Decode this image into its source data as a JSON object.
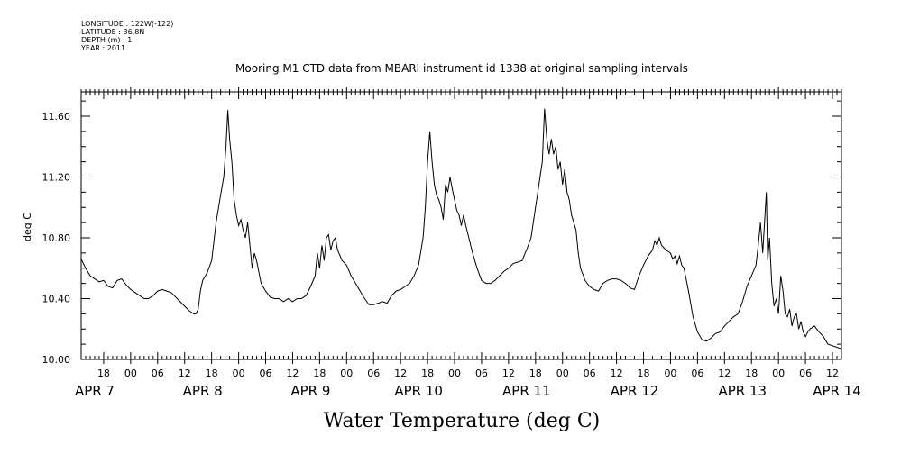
{
  "header": {
    "longitude": "LONGITUDE : 122W(-122)",
    "latitude": "LATITUDE : 36.8N",
    "depth": "DEPTH (m) : 1",
    "year": "YEAR : 2011"
  },
  "chart_data": {
    "type": "line",
    "title": "Mooring M1 CTD data from MBARI instrument id 1338 at original sampling intervals",
    "xlabel": "Water Temperature (deg C)",
    "ylabel": "deg C",
    "ylim": [
      10.0,
      11.76
    ],
    "xlim": [
      -26,
      6
    ],
    "y_ticks": [
      "10.00",
      "10.40",
      "10.80",
      "11.20",
      "11.60"
    ],
    "x_hour_ticks": [
      {
        "label": "18",
        "h": 18
      },
      {
        "label": "00",
        "h": 24
      },
      {
        "label": "06",
        "h": 30
      },
      {
        "label": "12",
        "h": 36
      },
      {
        "label": "18",
        "h": 42
      },
      {
        "label": "00",
        "h": 48
      },
      {
        "label": "06",
        "h": 54
      },
      {
        "label": "12",
        "h": 60
      },
      {
        "label": "18",
        "h": 66
      },
      {
        "label": "00",
        "h": 72
      },
      {
        "label": "06",
        "h": 78
      },
      {
        "label": "12",
        "h": 84
      },
      {
        "label": "18",
        "h": 90
      },
      {
        "label": "00",
        "h": 96
      },
      {
        "label": "06",
        "h": 102
      },
      {
        "label": "12",
        "h": 108
      },
      {
        "label": "18",
        "h": 114
      },
      {
        "label": "00",
        "h": 120
      },
      {
        "label": "06",
        "h": 126
      },
      {
        "label": "12",
        "h": 132
      },
      {
        "label": "18",
        "h": 138
      },
      {
        "label": "00",
        "h": 144
      },
      {
        "label": "06",
        "h": 150
      },
      {
        "label": "12",
        "h": 156
      },
      {
        "label": "18",
        "h": 162
      },
      {
        "label": "00",
        "h": 168
      },
      {
        "label": "06",
        "h": 174
      },
      {
        "label": "12",
        "h": 180
      }
    ],
    "x_date_labels": [
      {
        "label": "APR  7",
        "h": 16
      },
      {
        "label": "APR  8",
        "h": 40
      },
      {
        "label": "APR  9",
        "h": 64
      },
      {
        "label": "APR 10",
        "h": 88
      },
      {
        "label": "APR 11",
        "h": 112
      },
      {
        "label": "APR 12",
        "h": 136
      },
      {
        "label": "APR 13",
        "h": 160
      },
      {
        "label": "APR 14",
        "h": 181
      }
    ],
    "x_range_hours": [
      13.0,
      182.0
    ],
    "series": [
      {
        "color": "#000000",
        "points": [
          [
            13.0,
            10.66
          ],
          [
            14.0,
            10.6
          ],
          [
            15.0,
            10.55
          ],
          [
            16.0,
            10.53
          ],
          [
            17.0,
            10.51
          ],
          [
            18.0,
            10.52
          ],
          [
            19.0,
            10.48
          ],
          [
            20.0,
            10.47
          ],
          [
            21.0,
            10.52
          ],
          [
            22.0,
            10.53
          ],
          [
            23.0,
            10.49
          ],
          [
            24.0,
            10.46
          ],
          [
            25.0,
            10.44
          ],
          [
            26.0,
            10.42
          ],
          [
            27.0,
            10.4
          ],
          [
            28.0,
            10.4
          ],
          [
            29.0,
            10.42
          ],
          [
            30.0,
            10.45
          ],
          [
            31.0,
            10.46
          ],
          [
            32.0,
            10.45
          ],
          [
            33.0,
            10.44
          ],
          [
            34.0,
            10.41
          ],
          [
            35.0,
            10.38
          ],
          [
            36.0,
            10.35
          ],
          [
            37.0,
            10.32
          ],
          [
            38.0,
            10.3
          ],
          [
            38.5,
            10.3
          ],
          [
            39.0,
            10.33
          ],
          [
            39.5,
            10.45
          ],
          [
            40.0,
            10.52
          ],
          [
            41.0,
            10.57
          ],
          [
            42.0,
            10.65
          ],
          [
            43.0,
            10.9
          ],
          [
            44.0,
            11.08
          ],
          [
            44.7,
            11.2
          ],
          [
            45.2,
            11.4
          ],
          [
            45.6,
            11.64
          ],
          [
            46.0,
            11.45
          ],
          [
            46.5,
            11.3
          ],
          [
            47.0,
            11.05
          ],
          [
            47.5,
            10.95
          ],
          [
            48.0,
            10.88
          ],
          [
            48.5,
            10.92
          ],
          [
            49.0,
            10.85
          ],
          [
            49.5,
            10.8
          ],
          [
            50.0,
            10.9
          ],
          [
            50.5,
            10.75
          ],
          [
            51.0,
            10.6
          ],
          [
            51.5,
            10.7
          ],
          [
            52.0,
            10.65
          ],
          [
            53.0,
            10.5
          ],
          [
            54.0,
            10.45
          ],
          [
            55.0,
            10.41
          ],
          [
            56.0,
            10.4
          ],
          [
            57.0,
            10.4
          ],
          [
            58.0,
            10.38
          ],
          [
            59.0,
            10.4
          ],
          [
            60.0,
            10.38
          ],
          [
            61.0,
            10.4
          ],
          [
            62.0,
            10.4
          ],
          [
            63.0,
            10.42
          ],
          [
            64.0,
            10.48
          ],
          [
            65.0,
            10.55
          ],
          [
            65.5,
            10.7
          ],
          [
            66.0,
            10.6
          ],
          [
            66.5,
            10.75
          ],
          [
            67.0,
            10.65
          ],
          [
            67.5,
            10.8
          ],
          [
            68.0,
            10.82
          ],
          [
            68.5,
            10.72
          ],
          [
            69.0,
            10.78
          ],
          [
            69.5,
            10.8
          ],
          [
            70.0,
            10.72
          ],
          [
            71.0,
            10.65
          ],
          [
            72.0,
            10.62
          ],
          [
            73.0,
            10.55
          ],
          [
            74.0,
            10.5
          ],
          [
            75.0,
            10.45
          ],
          [
            76.0,
            10.4
          ],
          [
            77.0,
            10.36
          ],
          [
            78.0,
            10.36
          ],
          [
            79.0,
            10.37
          ],
          [
            80.0,
            10.38
          ],
          [
            81.0,
            10.37
          ],
          [
            82.0,
            10.42
          ],
          [
            83.0,
            10.45
          ],
          [
            84.0,
            10.46
          ],
          [
            85.0,
            10.48
          ],
          [
            86.0,
            10.5
          ],
          [
            87.0,
            10.55
          ],
          [
            88.0,
            10.62
          ],
          [
            89.0,
            10.8
          ],
          [
            89.5,
            11.0
          ],
          [
            90.0,
            11.3
          ],
          [
            90.5,
            11.5
          ],
          [
            91.0,
            11.3
          ],
          [
            91.5,
            11.15
          ],
          [
            92.0,
            11.08
          ],
          [
            92.5,
            11.05
          ],
          [
            93.0,
            11.0
          ],
          [
            93.5,
            10.92
          ],
          [
            94.0,
            11.15
          ],
          [
            94.5,
            11.1
          ],
          [
            95.0,
            11.2
          ],
          [
            95.5,
            11.12
          ],
          [
            96.0,
            11.05
          ],
          [
            96.5,
            10.98
          ],
          [
            97.0,
            10.95
          ],
          [
            97.5,
            10.88
          ],
          [
            98.0,
            10.95
          ],
          [
            98.5,
            10.88
          ],
          [
            99.0,
            10.82
          ],
          [
            100.0,
            10.7
          ],
          [
            101.0,
            10.6
          ],
          [
            102.0,
            10.52
          ],
          [
            103.0,
            10.5
          ],
          [
            104.0,
            10.5
          ],
          [
            105.0,
            10.52
          ],
          [
            106.0,
            10.55
          ],
          [
            107.0,
            10.58
          ],
          [
            108.0,
            10.6
          ],
          [
            109.0,
            10.63
          ],
          [
            110.0,
            10.64
          ],
          [
            111.0,
            10.65
          ],
          [
            112.0,
            10.72
          ],
          [
            113.0,
            10.8
          ],
          [
            113.5,
            10.9
          ],
          [
            114.0,
            11.0
          ],
          [
            114.5,
            11.1
          ],
          [
            115.0,
            11.2
          ],
          [
            115.5,
            11.3
          ],
          [
            116.0,
            11.65
          ],
          [
            116.5,
            11.45
          ],
          [
            117.0,
            11.35
          ],
          [
            117.5,
            11.45
          ],
          [
            118.0,
            11.35
          ],
          [
            118.5,
            11.4
          ],
          [
            119.0,
            11.25
          ],
          [
            119.5,
            11.3
          ],
          [
            120.0,
            11.15
          ],
          [
            120.5,
            11.25
          ],
          [
            121.0,
            11.1
          ],
          [
            121.5,
            11.05
          ],
          [
            122.0,
            10.95
          ],
          [
            123.0,
            10.85
          ],
          [
            123.5,
            10.7
          ],
          [
            124.0,
            10.6
          ],
          [
            125.0,
            10.52
          ],
          [
            126.0,
            10.48
          ],
          [
            127.0,
            10.46
          ],
          [
            128.0,
            10.45
          ],
          [
            129.0,
            10.5
          ],
          [
            130.0,
            10.52
          ],
          [
            131.0,
            10.53
          ],
          [
            132.0,
            10.53
          ],
          [
            133.0,
            10.52
          ],
          [
            134.0,
            10.5
          ],
          [
            135.0,
            10.47
          ],
          [
            136.0,
            10.46
          ],
          [
            137.0,
            10.55
          ],
          [
            138.0,
            10.62
          ],
          [
            139.0,
            10.68
          ],
          [
            140.0,
            10.72
          ],
          [
            140.5,
            10.78
          ],
          [
            141.0,
            10.75
          ],
          [
            141.5,
            10.8
          ],
          [
            142.0,
            10.75
          ],
          [
            143.0,
            10.72
          ],
          [
            144.0,
            10.7
          ],
          [
            144.5,
            10.66
          ],
          [
            145.0,
            10.68
          ],
          [
            145.5,
            10.63
          ],
          [
            146.0,
            10.68
          ],
          [
            146.5,
            10.62
          ],
          [
            147.0,
            10.6
          ],
          [
            148.0,
            10.45
          ],
          [
            149.0,
            10.28
          ],
          [
            150.0,
            10.18
          ],
          [
            151.0,
            10.13
          ],
          [
            152.0,
            10.12
          ],
          [
            153.0,
            10.14
          ],
          [
            154.0,
            10.17
          ],
          [
            155.0,
            10.18
          ],
          [
            156.0,
            10.22
          ],
          [
            157.0,
            10.25
          ],
          [
            158.0,
            10.28
          ],
          [
            159.0,
            10.3
          ],
          [
            160.0,
            10.38
          ],
          [
            161.0,
            10.48
          ],
          [
            162.0,
            10.55
          ],
          [
            163.0,
            10.62
          ],
          [
            163.5,
            10.75
          ],
          [
            164.0,
            10.9
          ],
          [
            164.5,
            10.7
          ],
          [
            165.0,
            10.95
          ],
          [
            165.3,
            11.1
          ],
          [
            165.6,
            10.65
          ],
          [
            166.0,
            10.8
          ],
          [
            166.5,
            10.5
          ],
          [
            167.0,
            10.35
          ],
          [
            167.5,
            10.4
          ],
          [
            168.0,
            10.3
          ],
          [
            168.5,
            10.55
          ],
          [
            169.0,
            10.45
          ],
          [
            169.5,
            10.3
          ],
          [
            170.0,
            10.28
          ],
          [
            170.5,
            10.33
          ],
          [
            171.0,
            10.22
          ],
          [
            171.5,
            10.28
          ],
          [
            172.0,
            10.3
          ],
          [
            172.5,
            10.2
          ],
          [
            173.0,
            10.25
          ],
          [
            173.5,
            10.18
          ],
          [
            174.0,
            10.15
          ],
          [
            174.5,
            10.18
          ],
          [
            175.0,
            10.2
          ],
          [
            176.0,
            10.22
          ],
          [
            177.0,
            10.18
          ],
          [
            178.0,
            10.15
          ],
          [
            179.0,
            10.1
          ],
          [
            180.0,
            10.09
          ],
          [
            181.0,
            10.08
          ],
          [
            182.0,
            10.07
          ]
        ]
      }
    ]
  }
}
